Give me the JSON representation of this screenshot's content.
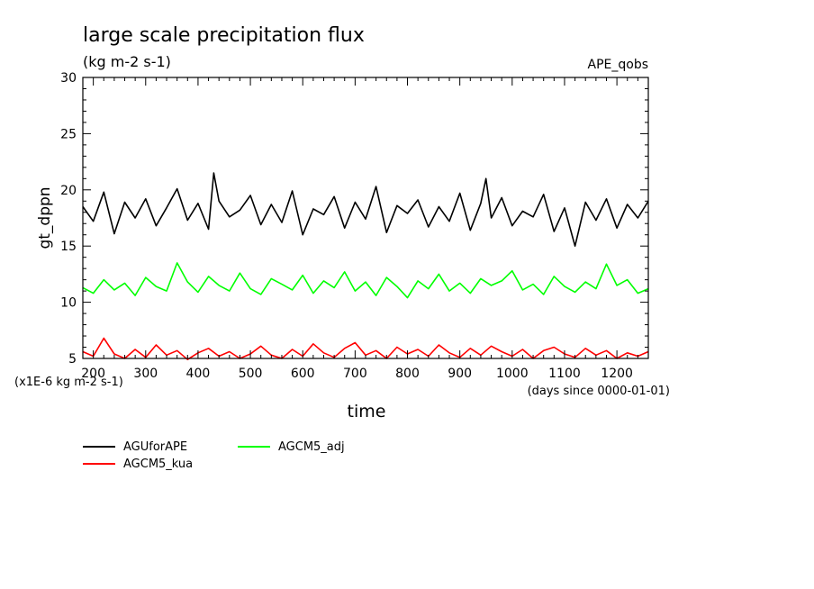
{
  "chart_data": {
    "type": "line",
    "title": "large scale precipitation flux",
    "subtitle": "(kg m-2 s-1)",
    "dataset_label": "APE_qobs",
    "xlabel": "time",
    "x_unit_note": "(days since 0000-01-01)",
    "ylabel": "gt_dppn",
    "y_unit_note": "(x1E-6 kg m-2 s-1)",
    "xlim": [
      180,
      1260
    ],
    "ylim": [
      5,
      30
    ],
    "x_ticks": [
      200,
      300,
      400,
      500,
      600,
      700,
      800,
      900,
      1000,
      1100,
      1200
    ],
    "y_ticks": [
      5,
      10,
      15,
      20,
      25,
      30
    ],
    "grid": false,
    "legend_position": "bottom-left",
    "series": [
      {
        "name": "AGUforAPE",
        "color": "#000000",
        "x": [
          180,
          200,
          220,
          240,
          260,
          280,
          300,
          320,
          340,
          360,
          380,
          400,
          420,
          430,
          440,
          460,
          480,
          500,
          520,
          540,
          560,
          580,
          600,
          620,
          640,
          660,
          680,
          700,
          720,
          740,
          760,
          780,
          800,
          820,
          840,
          860,
          880,
          900,
          920,
          940,
          950,
          960,
          980,
          1000,
          1020,
          1040,
          1060,
          1080,
          1100,
          1120,
          1140,
          1160,
          1180,
          1200,
          1220,
          1240,
          1260
        ],
        "values": [
          18.5,
          17.2,
          19.8,
          16.1,
          18.9,
          17.5,
          19.2,
          16.8,
          18.4,
          20.1,
          17.3,
          18.8,
          16.5,
          21.5,
          19.0,
          17.6,
          18.2,
          19.5,
          16.9,
          18.7,
          17.1,
          19.9,
          16.0,
          18.3,
          17.8,
          19.4,
          16.6,
          18.9,
          17.4,
          20.3,
          16.2,
          18.6,
          17.9,
          19.1,
          16.7,
          18.5,
          17.2,
          19.7,
          16.4,
          18.8,
          21.0,
          17.5,
          19.3,
          16.8,
          18.1,
          17.6,
          19.6,
          16.3,
          18.4,
          15.0,
          18.9,
          17.3,
          19.2,
          16.6,
          18.7,
          17.5,
          19.0
        ]
      },
      {
        "name": "AGCM5_adj",
        "color": "#00ff00",
        "x": [
          180,
          200,
          220,
          240,
          260,
          280,
          300,
          320,
          340,
          360,
          380,
          400,
          420,
          440,
          460,
          480,
          500,
          520,
          540,
          560,
          580,
          600,
          620,
          640,
          660,
          680,
          700,
          720,
          740,
          760,
          780,
          800,
          820,
          840,
          860,
          880,
          900,
          920,
          940,
          960,
          980,
          1000,
          1020,
          1040,
          1060,
          1080,
          1100,
          1120,
          1140,
          1160,
          1180,
          1200,
          1220,
          1240,
          1260
        ],
        "values": [
          11.3,
          10.8,
          12.0,
          11.1,
          11.7,
          10.6,
          12.2,
          11.4,
          11.0,
          13.5,
          11.8,
          10.9,
          12.3,
          11.5,
          11.0,
          12.6,
          11.2,
          10.7,
          12.1,
          11.6,
          11.1,
          12.4,
          10.8,
          11.9,
          11.3,
          12.7,
          11.0,
          11.8,
          10.6,
          12.2,
          11.4,
          10.4,
          11.9,
          11.2,
          12.5,
          11.0,
          11.7,
          10.8,
          12.1,
          11.5,
          11.9,
          12.8,
          11.1,
          11.6,
          10.7,
          12.3,
          11.4,
          10.9,
          11.8,
          11.2,
          13.4,
          11.5,
          12.0,
          10.8,
          11.2
        ]
      },
      {
        "name": "AGCM5_kua",
        "color": "#ff0000",
        "x": [
          180,
          200,
          220,
          240,
          260,
          280,
          300,
          320,
          340,
          360,
          380,
          400,
          420,
          440,
          460,
          480,
          500,
          520,
          540,
          560,
          580,
          600,
          620,
          640,
          660,
          680,
          700,
          720,
          740,
          760,
          780,
          800,
          820,
          840,
          860,
          880,
          900,
          920,
          940,
          960,
          980,
          1000,
          1020,
          1040,
          1060,
          1080,
          1100,
          1120,
          1140,
          1160,
          1180,
          1200,
          1220,
          1240,
          1260
        ],
        "values": [
          5.6,
          5.2,
          6.8,
          5.4,
          5.0,
          5.8,
          5.1,
          6.2,
          5.3,
          5.7,
          4.9,
          5.5,
          5.9,
          5.2,
          5.6,
          5.0,
          5.4,
          6.1,
          5.3,
          5.0,
          5.8,
          5.2,
          6.3,
          5.5,
          5.1,
          5.9,
          6.4,
          5.3,
          5.7,
          5.0,
          6.0,
          5.4,
          5.8,
          5.2,
          6.2,
          5.5,
          5.1,
          5.9,
          5.3,
          6.1,
          5.6,
          5.2,
          5.8,
          5.0,
          5.7,
          6.0,
          5.4,
          5.1,
          5.9,
          5.3,
          5.7,
          5.0,
          5.5,
          5.2,
          5.6
        ]
      }
    ]
  }
}
